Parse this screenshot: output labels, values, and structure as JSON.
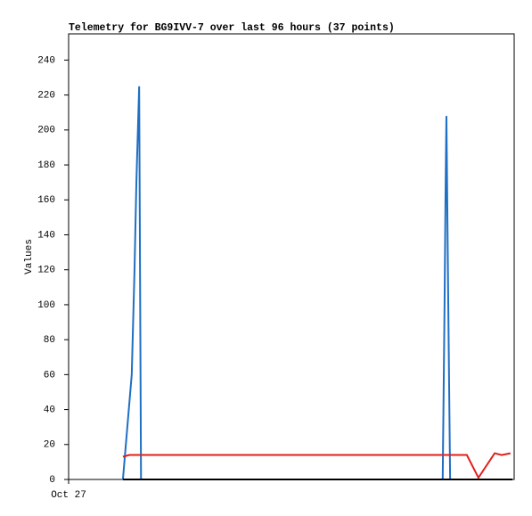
{
  "chart_data": {
    "type": "line",
    "title": "Telemetry for BG9IVV-7 over last 96 hours (37 points)",
    "y_label": "Values",
    "xlim": [
      0,
      96
    ],
    "xticks": [
      {
        "value": 0,
        "label": "Oct 27"
      }
    ],
    "ylim": [
      0,
      255
    ],
    "yticks": [
      0,
      20,
      40,
      60,
      80,
      100,
      120,
      140,
      160,
      180,
      200,
      220,
      240
    ],
    "grid": false,
    "series": [
      {
        "color": "#1f6fc4",
        "x": [
          11.7,
          13.6,
          14.2,
          14.6,
          15.2,
          15.6,
          80.6,
          81.0,
          81.2,
          81.4,
          81.8,
          82.2,
          95.6
        ],
        "values": [
          0,
          60,
          120,
          170,
          225,
          0,
          0,
          100,
          160,
          208,
          100,
          0,
          0
        ]
      },
      {
        "color": "#e0201c",
        "x": [
          11.7,
          13.1,
          85.8,
          88.3,
          91.8,
          93.3,
          95.2
        ],
        "values": [
          13,
          14,
          14,
          1,
          15,
          14,
          15
        ]
      },
      {
        "color": "#000000",
        "x": [
          11.7,
          95.6
        ],
        "values": [
          0,
          0
        ]
      }
    ]
  }
}
